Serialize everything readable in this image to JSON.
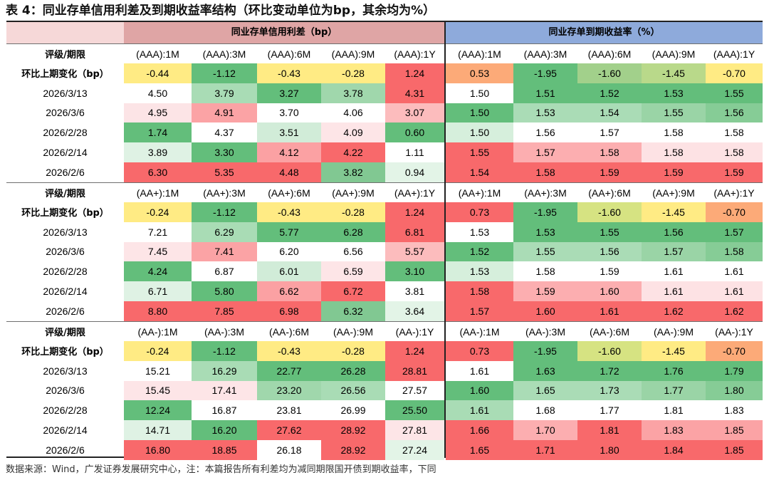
{
  "title": "表 4：同业存单信用利差及到期收益率结构（环比变动单位为bp，其余均为%）",
  "header": {
    "spread_group": "同业存单信用利差（bp）",
    "yield_group": "同业存单到期收益率（%）"
  },
  "groups": [
    {
      "rating_label": "评级/期限",
      "change_label": "环比上期变化（bp）",
      "spread_terms": [
        "(AAA):1M",
        "(AAA):3M",
        "(AAA):6M",
        "(AAA):9M",
        "(AAA):1Y"
      ],
      "yield_terms": [
        "(AAA):1M",
        "(AAA):3M",
        "(AAA):6M",
        "(AAA):9M",
        "(AAA):1Y"
      ],
      "change": [
        "-0.44",
        "-1.12",
        "-0.43",
        "-0.28",
        "1.24",
        "0.53",
        "-1.95",
        "-1.60",
        "-1.45",
        "-0.70"
      ],
      "change_colors": [
        "#ffeb84",
        "#63be7b",
        "#ffeb84",
        "#ffeb84",
        "#f8696b",
        "#fcaa78",
        "#63be7b",
        "#a2d08b",
        "#b9d98a",
        "#ffeb84"
      ],
      "rows": [
        {
          "date": "2026/3/13",
          "values": [
            "4.50",
            "3.79",
            "3.27",
            "3.78",
            "4.31",
            "1.50",
            "1.51",
            "1.52",
            "1.53",
            "1.55"
          ],
          "colors": [
            "#ffffff",
            "#a9dcb5",
            "#63be7b",
            "#a0d7ac",
            "#f8696b",
            "#ffffff",
            "#63be7b",
            "#63be7b",
            "#63be7b",
            "#63be7b"
          ]
        },
        {
          "date": "2026/3/6",
          "values": [
            "4.95",
            "4.91",
            "3.70",
            "4.06",
            "3.07",
            "1.50",
            "1.53",
            "1.54",
            "1.55",
            "1.56"
          ],
          "colors": [
            "#fce4e6",
            "#fba3a5",
            "#ffffff",
            "#ffffff",
            "#fcbcbd",
            "#63be7b",
            "#aadcb6",
            "#aadcb6",
            "#9ad4a6",
            "#86cc96"
          ]
        },
        {
          "date": "2026/2/28",
          "values": [
            "1.74",
            "4.37",
            "3.51",
            "4.09",
            "0.60",
            "1.50",
            "1.56",
            "1.57",
            "1.58",
            "1.58"
          ],
          "colors": [
            "#63be7b",
            "#ffffff",
            "#d1ecd8",
            "#fde5e7",
            "#63be7b",
            "#d6efdc",
            "#ffffff",
            "#ffffff",
            "#ffffff",
            "#ffffff"
          ]
        },
        {
          "date": "2026/2/14",
          "values": [
            "3.89",
            "3.30",
            "4.12",
            "4.22",
            "1.11",
            "1.55",
            "1.57",
            "1.58",
            "1.58",
            "1.58"
          ],
          "colors": [
            "#dff2e4",
            "#63be7b",
            "#fba1a3",
            "#f8696b",
            "#ffffff",
            "#f8696b",
            "#fcaeb0",
            "#fcaeb0",
            "#fde2e4",
            "#fde2e4"
          ]
        },
        {
          "date": "2026/2/6",
          "values": [
            "6.30",
            "5.35",
            "4.48",
            "3.82",
            "0.94",
            "1.54",
            "1.58",
            "1.59",
            "1.59",
            "1.59"
          ],
          "colors": [
            "#f8696b",
            "#f8696b",
            "#f8696b",
            "#81c892",
            "#e3f4e7",
            "#f8696b",
            "#f8696b",
            "#f8696b",
            "#f8696b",
            "#f8696b"
          ]
        }
      ]
    },
    {
      "rating_label": "评级/期限",
      "change_label": "环比上期变化（bp）",
      "spread_terms": [
        "(AA+):1M",
        "(AA+):3M",
        "(AA+):6M",
        "(AA+):9M",
        "(AA+):1Y"
      ],
      "yield_terms": [
        "(AA+):1M",
        "(AA+):3M",
        "(AA+):6M",
        "(AA+):9M",
        "(AA+):1Y"
      ],
      "change": [
        "-0.24",
        "-1.12",
        "-0.43",
        "-0.28",
        "1.24",
        "0.73",
        "-1.95",
        "-1.60",
        "-1.45",
        "-0.70"
      ],
      "change_colors": [
        "#ffeb84",
        "#63be7b",
        "#ffeb84",
        "#ffeb84",
        "#f8696b",
        "#f8696b",
        "#63be7b",
        "#d6e382",
        "#ffeb84",
        "#fcaa78"
      ],
      "rows": [
        {
          "date": "2026/3/13",
          "values": [
            "7.21",
            "6.29",
            "5.77",
            "6.28",
            "6.81",
            "1.53",
            "1.53",
            "1.55",
            "1.56",
            "1.57"
          ],
          "colors": [
            "#ffffff",
            "#a9dcb5",
            "#63be7b",
            "#63be7b",
            "#f8696b",
            "#ffffff",
            "#63be7b",
            "#63be7b",
            "#63be7b",
            "#63be7b"
          ]
        },
        {
          "date": "2026/3/6",
          "values": [
            "7.45",
            "7.41",
            "6.20",
            "6.56",
            "5.57",
            "1.52",
            "1.55",
            "1.56",
            "1.57",
            "1.58"
          ],
          "colors": [
            "#fde5e7",
            "#fba3a5",
            "#ffffff",
            "#ffffff",
            "#fcbcbd",
            "#63be7b",
            "#aadcb6",
            "#aadcb6",
            "#9ad4a6",
            "#86cc96"
          ]
        },
        {
          "date": "2026/2/28",
          "values": [
            "4.24",
            "6.87",
            "6.01",
            "6.59",
            "3.10",
            "1.53",
            "1.58",
            "1.59",
            "1.61",
            "1.61"
          ],
          "colors": [
            "#63be7b",
            "#ffffff",
            "#d1ecd8",
            "#fde5e7",
            "#63be7b",
            "#d6efdc",
            "#ffffff",
            "#ffffff",
            "#ffffff",
            "#ffffff"
          ]
        },
        {
          "date": "2026/2/14",
          "values": [
            "6.71",
            "5.80",
            "6.62",
            "6.72",
            "3.81",
            "1.58",
            "1.59",
            "1.60",
            "1.61",
            "1.61"
          ],
          "colors": [
            "#dff2e4",
            "#63be7b",
            "#fba1a3",
            "#f8696b",
            "#ffffff",
            "#f8696b",
            "#fcaeb0",
            "#fcaeb0",
            "#fde2e4",
            "#fde2e4"
          ]
        },
        {
          "date": "2026/2/6",
          "values": [
            "8.80",
            "7.85",
            "6.98",
            "6.32",
            "3.64",
            "1.57",
            "1.60",
            "1.61",
            "1.62",
            "1.62"
          ],
          "colors": [
            "#f8696b",
            "#f8696b",
            "#f8696b",
            "#81c892",
            "#e3f4e7",
            "#f8696b",
            "#f8696b",
            "#f8696b",
            "#f8696b",
            "#f8696b"
          ]
        }
      ]
    },
    {
      "rating_label": "评级/期限",
      "change_label": "环比上期变化（bp）",
      "spread_terms": [
        "(AA-):1M",
        "(AA-):3M",
        "(AA-):6M",
        "(AA-):9M",
        "(AA-):1Y"
      ],
      "yield_terms": [
        "(AA-):1M",
        "(AA-):3M",
        "(AA-):6M",
        "(AA-):9M",
        "(AA-):1Y"
      ],
      "change": [
        "-0.24",
        "-1.12",
        "-0.43",
        "-0.28",
        "1.24",
        "0.73",
        "-1.95",
        "-1.60",
        "-1.45",
        "-0.70"
      ],
      "change_colors": [
        "#ffeb84",
        "#63be7b",
        "#ffeb84",
        "#ffeb84",
        "#f8696b",
        "#f8696b",
        "#63be7b",
        "#d6e382",
        "#ffeb84",
        "#fcaa78"
      ],
      "rows": [
        {
          "date": "2026/3/13",
          "values": [
            "15.21",
            "16.29",
            "22.77",
            "26.28",
            "28.81",
            "1.61",
            "1.63",
            "1.72",
            "1.76",
            "1.79"
          ],
          "colors": [
            "#ffffff",
            "#a9dcb5",
            "#63be7b",
            "#63be7b",
            "#f8696b",
            "#ffffff",
            "#63be7b",
            "#63be7b",
            "#63be7b",
            "#63be7b"
          ]
        },
        {
          "date": "2026/3/6",
          "values": [
            "15.45",
            "17.41",
            "23.20",
            "26.56",
            "27.57",
            "1.60",
            "1.65",
            "1.73",
            "1.77",
            "1.80"
          ],
          "colors": [
            "#fde5e7",
            "#fde5e7",
            "#a0d7ac",
            "#a9dcb5",
            "#ffffff",
            "#63be7b",
            "#aadcb6",
            "#aadcb6",
            "#9ad4a6",
            "#86cc96"
          ]
        },
        {
          "date": "2026/2/28",
          "values": [
            "12.24",
            "16.87",
            "23.81",
            "26.99",
            "25.50",
            "1.61",
            "1.68",
            "1.77",
            "1.81",
            "1.83"
          ],
          "colors": [
            "#63be7b",
            "#ffffff",
            "#ffffff",
            "#ffffff",
            "#63be7b",
            "#a9dcb5",
            "#ffffff",
            "#ffffff",
            "#ffffff",
            "#ffffff"
          ]
        },
        {
          "date": "2026/2/14",
          "values": [
            "14.71",
            "16.20",
            "27.62",
            "28.92",
            "27.81",
            "1.66",
            "1.70",
            "1.81",
            "1.83",
            "1.85"
          ],
          "colors": [
            "#dff2e4",
            "#63be7b",
            "#f8696b",
            "#f8696b",
            "#fde5e7",
            "#f8696b",
            "#fcaeb0",
            "#f8696b",
            "#fba3a5",
            "#fba3a5"
          ]
        },
        {
          "date": "2026/2/6",
          "values": [
            "16.80",
            "18.85",
            "26.18",
            "28.92",
            "27.24",
            "1.65",
            "1.71",
            "1.80",
            "1.84",
            "1.85"
          ],
          "colors": [
            "#f8696b",
            "#f8696b",
            "#ffffff",
            "#f8696b",
            "#e3f4e7",
            "#f8696b",
            "#f8696b",
            "#f8696b",
            "#f8696b",
            "#f8696b"
          ]
        }
      ]
    }
  ],
  "note": "数据来源：Wind，广发证券发展研究中心，注：本篇报告所有利差均为减同期限国开债到期收益率，下同"
}
